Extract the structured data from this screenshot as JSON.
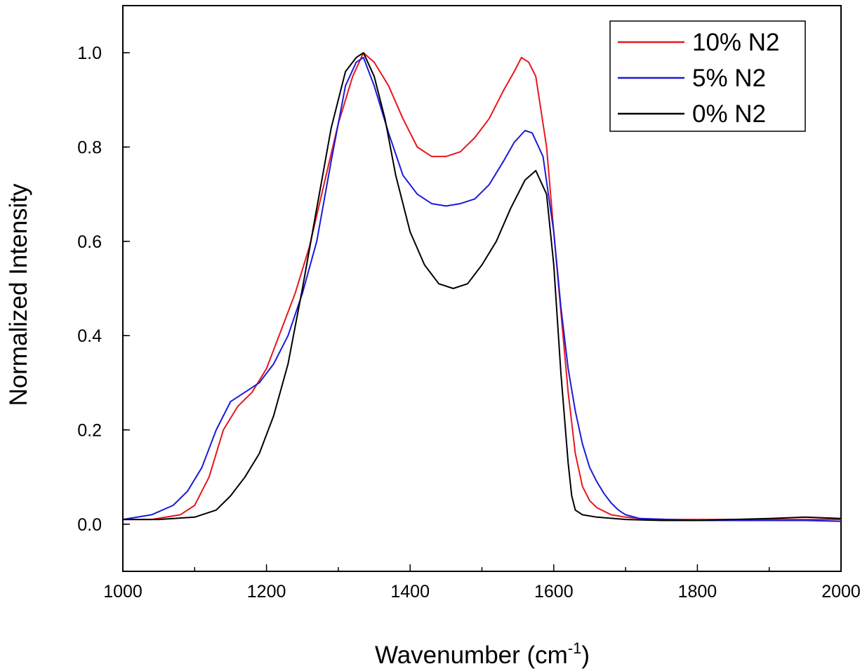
{
  "chart_data": {
    "type": "line",
    "title": "",
    "xlabel": "Wavenumber (cm",
    "xlabel_superscript": "-1",
    "xlabel_suffix": ")",
    "ylabel": "Normalized Intensity",
    "xlim": [
      1000,
      2000
    ],
    "ylim": [
      -0.1,
      1.1
    ],
    "xticks": [
      1000,
      1200,
      1400,
      1600,
      1800,
      2000
    ],
    "xtick_labels": [
      "1000",
      "1200",
      "1400",
      "1600",
      "1800",
      "2000"
    ],
    "yticks": [
      0.0,
      0.2,
      0.4,
      0.6,
      0.8,
      1.0
    ],
    "ytick_labels": [
      "0.0",
      "0.2",
      "0.4",
      "0.6",
      "0.8",
      "1.0"
    ],
    "grid": false,
    "legend_position": "top-right",
    "series": [
      {
        "name": "10% N2",
        "color": "#e8161b",
        "x": [
          1000,
          1040,
          1080,
          1100,
          1120,
          1140,
          1160,
          1180,
          1200,
          1220,
          1240,
          1260,
          1280,
          1300,
          1320,
          1335,
          1350,
          1370,
          1390,
          1410,
          1430,
          1450,
          1470,
          1490,
          1510,
          1530,
          1545,
          1555,
          1565,
          1575,
          1590,
          1600,
          1610,
          1620,
          1630,
          1640,
          1650,
          1660,
          1680,
          1700,
          1720,
          1760,
          1800,
          1850,
          1900,
          1950,
          2000
        ],
        "y": [
          0.01,
          0.01,
          0.02,
          0.04,
          0.1,
          0.2,
          0.25,
          0.28,
          0.33,
          0.41,
          0.49,
          0.59,
          0.72,
          0.85,
          0.95,
          1.0,
          0.98,
          0.93,
          0.86,
          0.8,
          0.78,
          0.78,
          0.79,
          0.82,
          0.86,
          0.92,
          0.96,
          0.99,
          0.98,
          0.95,
          0.8,
          0.62,
          0.45,
          0.28,
          0.15,
          0.08,
          0.05,
          0.035,
          0.02,
          0.015,
          0.012,
          0.01,
          0.01,
          0.01,
          0.01,
          0.01,
          0.01
        ]
      },
      {
        "name": "5% N2",
        "color": "#1a1adb",
        "x": [
          1000,
          1040,
          1070,
          1090,
          1110,
          1130,
          1150,
          1170,
          1190,
          1210,
          1230,
          1250,
          1270,
          1290,
          1310,
          1325,
          1335,
          1350,
          1370,
          1390,
          1410,
          1430,
          1450,
          1470,
          1490,
          1510,
          1530,
          1545,
          1560,
          1570,
          1585,
          1600,
          1610,
          1620,
          1630,
          1640,
          1650,
          1660,
          1670,
          1680,
          1690,
          1700,
          1720,
          1760,
          1800,
          1850,
          1900,
          1950,
          2000
        ],
        "y": [
          0.01,
          0.02,
          0.04,
          0.07,
          0.12,
          0.2,
          0.26,
          0.28,
          0.3,
          0.34,
          0.4,
          0.49,
          0.6,
          0.77,
          0.93,
          0.98,
          0.99,
          0.93,
          0.83,
          0.74,
          0.7,
          0.68,
          0.675,
          0.68,
          0.69,
          0.72,
          0.77,
          0.81,
          0.835,
          0.83,
          0.78,
          0.62,
          0.46,
          0.33,
          0.24,
          0.17,
          0.12,
          0.09,
          0.065,
          0.045,
          0.03,
          0.02,
          0.012,
          0.01,
          0.008,
          0.008,
          0.008,
          0.008,
          0.006
        ]
      },
      {
        "name": "0% N2",
        "color": "#000000",
        "x": [
          1000,
          1050,
          1100,
          1130,
          1150,
          1170,
          1190,
          1210,
          1230,
          1250,
          1270,
          1290,
          1310,
          1325,
          1335,
          1350,
          1365,
          1380,
          1400,
          1420,
          1440,
          1460,
          1480,
          1500,
          1520,
          1540,
          1560,
          1575,
          1590,
          1600,
          1610,
          1620,
          1625,
          1630,
          1640,
          1660,
          1700,
          1750,
          1800,
          1850,
          1900,
          1950,
          2000
        ],
        "y": [
          0.01,
          0.01,
          0.015,
          0.03,
          0.06,
          0.1,
          0.15,
          0.23,
          0.34,
          0.5,
          0.67,
          0.84,
          0.96,
          0.99,
          1.0,
          0.95,
          0.86,
          0.74,
          0.62,
          0.55,
          0.51,
          0.5,
          0.51,
          0.55,
          0.6,
          0.67,
          0.73,
          0.75,
          0.7,
          0.55,
          0.32,
          0.13,
          0.06,
          0.03,
          0.02,
          0.015,
          0.01,
          0.008,
          0.008,
          0.01,
          0.012,
          0.015,
          0.012
        ]
      }
    ]
  }
}
